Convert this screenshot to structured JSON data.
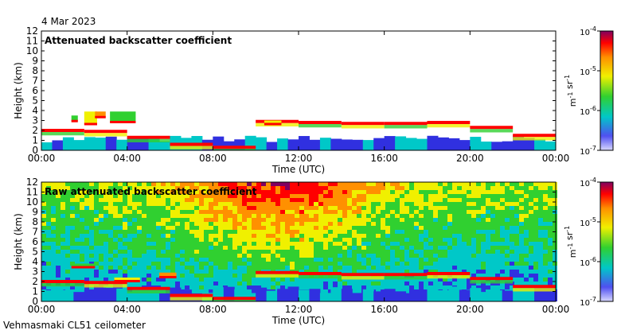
{
  "header": {
    "date": "4 Mar 2023",
    "instrument": "Vehmasmaki CL51 ceilometer"
  },
  "chart_data": {
    "type": "heatmap",
    "x_ticks": [
      "00:00",
      "04:00",
      "08:00",
      "12:00",
      "16:00",
      "20:00",
      "00:00"
    ],
    "xlabel": "Time (UTC)",
    "ylabel": "Height (km)",
    "ylim": [
      0,
      12
    ],
    "y_ticks": [
      "0",
      "1",
      "2",
      "3",
      "4",
      "5",
      "6",
      "7",
      "8",
      "9",
      "10",
      "11",
      "12"
    ],
    "colorbar": {
      "unit_label": "m-1 sr-1",
      "ticks": [
        "10-7",
        "10-6",
        "10-5",
        "10-4"
      ],
      "colors": [
        "#d8d8ff",
        "#3030e0",
        "#00c8c8",
        "#30d030",
        "#f0f000",
        "#ff9000",
        "#ff0000",
        "#800060"
      ]
    },
    "panels": [
      {
        "title": "Attenuated backscatter coefficient",
        "cloud_base_km": [
          2.0,
          1.9,
          1.3,
          0.6,
          0.3,
          2.9,
          2.8,
          2.7,
          2.7,
          2.8,
          2.3,
          1.5
        ],
        "layers": [
          {
            "t0": 1.4,
            "t1": 1.7,
            "h0": 2.9,
            "h1": 3.5
          },
          {
            "t0": 2.0,
            "t1": 2.6,
            "h0": 2.6,
            "h1": 3.9
          },
          {
            "t0": 2.5,
            "t1": 3.0,
            "h0": 3.3,
            "h1": 3.9
          },
          {
            "t0": 3.2,
            "t1": 4.4,
            "h0": 2.8,
            "h1": 3.9
          },
          {
            "t0": 10.4,
            "t1": 11.2,
            "h0": 2.6,
            "h1": 3.0
          }
        ]
      },
      {
        "title": "Raw attenuated backscatter coefficient",
        "cloud_base_km": [
          2.0,
          1.9,
          1.3,
          0.6,
          0.3,
          2.9,
          2.8,
          2.7,
          2.7,
          2.8,
          2.3,
          1.5
        ],
        "layers": [
          {
            "t0": 1.4,
            "t1": 2.5,
            "h0": 3.4,
            "h1": 3.8
          },
          {
            "t0": 3.4,
            "t1": 4.6,
            "h0": 2.0,
            "h1": 2.4
          },
          {
            "t0": 5.5,
            "t1": 6.3,
            "h0": 2.4,
            "h1": 2.9
          }
        ]
      }
    ]
  }
}
